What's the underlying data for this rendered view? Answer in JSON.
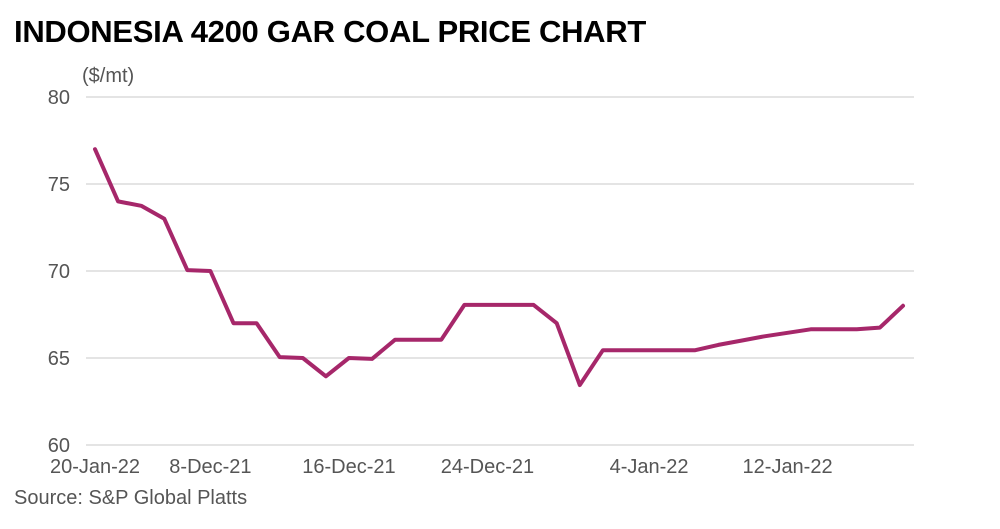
{
  "chart_data": {
    "type": "line",
    "title": "INDONESIA 4200 GAR COAL PRICE CHART",
    "ylabel": "($/mt)",
    "xlabel": "",
    "source": "Source: S&P Global Platts",
    "ylim": [
      60,
      80
    ],
    "yticks": [
      60,
      65,
      70,
      75,
      80
    ],
    "xticks": [
      "8-Dec-21",
      "16-Dec-21",
      "24-Dec-21",
      "4-Jan-22",
      "12-Jan-22",
      "20-Jan-22"
    ],
    "grid": true,
    "series": [
      {
        "color": "#a6276a",
        "x": [
          "1-Dec-21",
          "2-Dec-21",
          "3-Dec-21",
          "6-Dec-21",
          "7-Dec-21",
          "8-Dec-21",
          "9-Dec-21",
          "10-Dec-21",
          "13-Dec-21",
          "14-Dec-21",
          "15-Dec-21",
          "16-Dec-21",
          "17-Dec-21",
          "20-Dec-21",
          "21-Dec-21",
          "22-Dec-21",
          "23-Dec-21",
          "24-Dec-21",
          "27-Dec-21",
          "28-Dec-21",
          "29-Dec-21",
          "30-Dec-21",
          "31-Dec-21",
          "3-Jan-22",
          "4-Jan-22",
          "5-Jan-22",
          "6-Jan-22",
          "7-Jan-22",
          "10-Jan-22",
          "11-Jan-22",
          "12-Jan-22",
          "13-Jan-22",
          "14-Jan-22",
          "17-Jan-22",
          "18-Jan-22",
          "19-Jan-22"
        ],
        "values": [
          77.0,
          74.0,
          73.75,
          73.0,
          70.05,
          70.0,
          67.0,
          67.0,
          65.05,
          65.0,
          63.95,
          65.0,
          64.95,
          66.05,
          66.05,
          66.05,
          68.05,
          68.05,
          68.05,
          68.05,
          67.0,
          63.45,
          65.45,
          65.45,
          65.45,
          65.45,
          65.45,
          65.75,
          66.0,
          66.25,
          66.45,
          66.65,
          66.65,
          66.65,
          66.75,
          68.0
        ]
      }
    ]
  }
}
